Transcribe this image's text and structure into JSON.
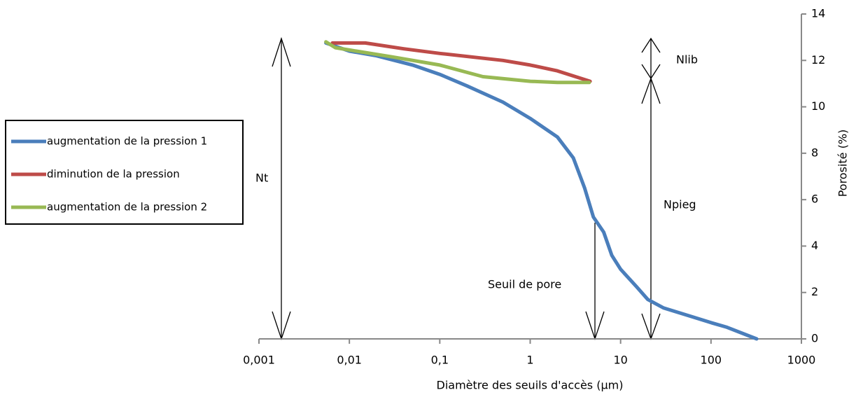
{
  "chart_data": {
    "type": "line",
    "x_label": "Diamètre des seuils d'accès (µm)",
    "y_label": "Porosité (%)",
    "xscale": "log",
    "xlim": [
      0.001,
      1000
    ],
    "xticks": [
      {
        "value": 0.001,
        "label": "0,001"
      },
      {
        "value": 0.01,
        "label": "0,01"
      },
      {
        "value": 0.1,
        "label": "0,1"
      },
      1,
      10,
      100,
      1000
    ],
    "ylim": [
      0,
      14
    ],
    "yticks": [
      0,
      2,
      4,
      6,
      8,
      10,
      12,
      14
    ],
    "grid": false,
    "legend": "left",
    "series": [
      {
        "name": "augmentation de la pression 1",
        "color": "#4a7ebb",
        "x": [
          0.0055,
          0.01,
          0.02,
          0.05,
          0.1,
          0.2,
          0.5,
          1,
          2,
          3,
          4,
          5,
          6.5,
          8,
          10,
          15,
          20,
          30,
          60,
          100,
          150,
          320
        ],
        "values": [
          12.75,
          12.4,
          12.2,
          11.8,
          11.4,
          10.9,
          10.2,
          9.5,
          8.7,
          7.8,
          6.5,
          5.25,
          4.6,
          3.6,
          3.0,
          2.25,
          1.7,
          1.33,
          0.97,
          0.7,
          0.5,
          0
        ]
      },
      {
        "name": "diminution de la pression",
        "color": "#be4b48",
        "x": [
          0.0065,
          0.015,
          0.04,
          0.1,
          0.5,
          1,
          2,
          4.6
        ],
        "values": [
          12.75,
          12.75,
          12.5,
          12.3,
          12.0,
          11.8,
          11.55,
          11.1
        ]
      },
      {
        "name": "augmentation de la pression 2",
        "color": "#98b954",
        "x": [
          0.0055,
          0.007,
          0.01,
          0.03,
          0.1,
          0.3,
          1,
          2,
          4.5
        ],
        "values": [
          12.8,
          12.55,
          12.45,
          12.15,
          11.8,
          11.3,
          11.1,
          11.05,
          11.05
        ]
      }
    ],
    "annotations": [
      "Nt",
      "Nlib",
      "Npieg",
      "Seuil de pore"
    ]
  }
}
